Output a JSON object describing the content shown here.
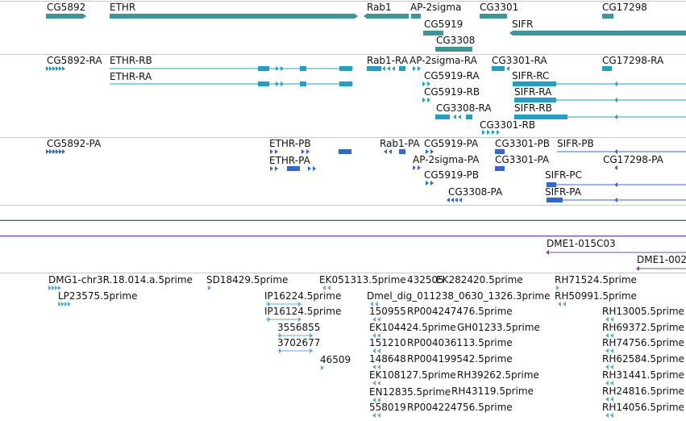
{
  "colors": {
    "gene": "#3c9597",
    "transcript": "#1ea0c8",
    "protein": "#2e68d0",
    "feature": "#7a4aa8",
    "est": "#6aa8dc",
    "divider": "#c8c8c8",
    "text": "#111111"
  },
  "tracks": [
    {
      "id": "genes",
      "color_key": "gene",
      "features": [
        {
          "label": "CG5892"
        },
        {
          "label": "ETHR"
        },
        {
          "label": "Rab1"
        },
        {
          "label": "AP-2sigma"
        },
        {
          "label": "CG3301"
        },
        {
          "label": "CG17298"
        },
        {
          "label": "CG5919"
        },
        {
          "label": "SIFR"
        },
        {
          "label": "CG3308"
        }
      ]
    },
    {
      "id": "transcripts",
      "color_key": "transcript",
      "features": [
        {
          "label": "CG5892-RA"
        },
        {
          "label": "ETHR-RB"
        },
        {
          "label": "Rab1-RA"
        },
        {
          "label": "AP-2sigma-RA"
        },
        {
          "label": "CG3301-RA"
        },
        {
          "label": "CG17298-RA"
        },
        {
          "label": "ETHR-RA"
        },
        {
          "label": "CG5919-RA"
        },
        {
          "label": "SIFR-RC"
        },
        {
          "label": "CG5919-RB"
        },
        {
          "label": "SIFR-RA"
        },
        {
          "label": "CG3308-RA"
        },
        {
          "label": "SIFR-RB"
        },
        {
          "label": "CG3301-RB"
        }
      ]
    },
    {
      "id": "proteins",
      "color_key": "protein",
      "features": [
        {
          "label": "CG5892-PA"
        },
        {
          "label": "ETHR-PB"
        },
        {
          "label": "Rab1-PA"
        },
        {
          "label": "CG5919-PA"
        },
        {
          "label": "CG3301-PB"
        },
        {
          "label": "SIFR-PB"
        },
        {
          "label": "ETHR-PA"
        },
        {
          "label": "AP-2sigma-PA"
        },
        {
          "label": "CG3301-PA"
        },
        {
          "label": "CG17298-PA"
        },
        {
          "label": "CG5919-PB"
        },
        {
          "label": "SIFR-PC"
        },
        {
          "label": "CG3308-PA"
        },
        {
          "label": "SIFR-PA"
        }
      ]
    },
    {
      "id": "features",
      "color_key": "feature",
      "features": [
        {
          "label": "DME1-015C03"
        },
        {
          "label": "DME1-002"
        }
      ]
    },
    {
      "id": "ests",
      "color_key": "est",
      "features": [
        {
          "label": "DMG1-chr3R.18.014.a.5prime"
        },
        {
          "label": "SD18429.5prime"
        },
        {
          "label": "EK051313.5prime"
        },
        {
          "label": "432505"
        },
        {
          "label": "EK282420.5prime"
        },
        {
          "label": "RH71524.5prime"
        },
        {
          "label": "LP23575.5prime"
        },
        {
          "label": "IP16224.5prime"
        },
        {
          "label": "Dmel_dig_011238_0630_1326.3prime"
        },
        {
          "label": "RH50991.5prime"
        },
        {
          "label": "IP16124.5prime"
        },
        {
          "label": "150955"
        },
        {
          "label": "RP004247476.5prime"
        },
        {
          "label": "RH13005.5prime"
        },
        {
          "label": "3556855"
        },
        {
          "label": "EK104424.5prime"
        },
        {
          "label": "GH01233.5prime"
        },
        {
          "label": "RH69372.5prime"
        },
        {
          "label": "3702677"
        },
        {
          "label": "151210"
        },
        {
          "label": "RP004036113.5prime"
        },
        {
          "label": "RH74756.5prime"
        },
        {
          "label": "46509"
        },
        {
          "label": "148648"
        },
        {
          "label": "RP004199542.5prime"
        },
        {
          "label": "RH62584.5prime"
        },
        {
          "label": "EK108127.5prime"
        },
        {
          "label": "RH39262.5prime"
        },
        {
          "label": "RH31441.5prime"
        },
        {
          "label": "EN12835.5prime"
        },
        {
          "label": "RH43119.5prime"
        },
        {
          "label": "RH24816.5prime"
        },
        {
          "label": "558019"
        },
        {
          "label": "RP004224756.5prime"
        },
        {
          "label": "RH14056.5prime"
        }
      ]
    }
  ]
}
